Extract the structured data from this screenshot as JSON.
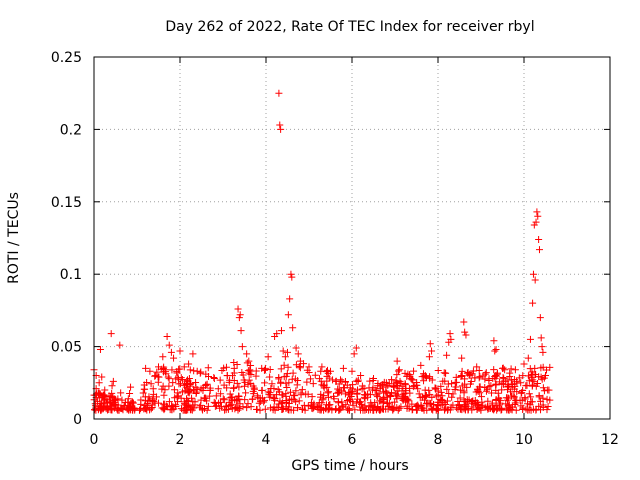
{
  "chart_data": {
    "type": "scatter",
    "title": "Day 262 of 2022, Rate Of TEC Index for receiver rbyl",
    "xlabel": "GPS time / hours",
    "ylabel": "ROTI / TECUs",
    "xlim": [
      0,
      12
    ],
    "ylim": [
      0,
      0.25
    ],
    "xticks": [
      0,
      2,
      4,
      6,
      8,
      10,
      12
    ],
    "yticks": [
      0,
      0.05,
      0.1,
      0.15,
      0.2,
      0.25
    ],
    "ytick_labels": [
      "0",
      "0.05",
      "0.1",
      "0.15",
      "0.2",
      "0.25"
    ],
    "grid": true,
    "marker": "+",
    "color": "#ff0000",
    "series": [
      {
        "name": "ROTI",
        "points": [
          [
            0.0,
            0.034
          ],
          [
            0.05,
            0.03
          ],
          [
            0.05,
            0.021
          ],
          [
            0.08,
            0.012
          ],
          [
            0.1,
            0.018
          ],
          [
            0.12,
            0.025
          ],
          [
            0.15,
            0.048
          ],
          [
            0.18,
            0.029
          ],
          [
            0.2,
            0.015
          ],
          [
            0.22,
            0.009
          ],
          [
            0.25,
            0.02
          ],
          [
            0.28,
            0.011
          ],
          [
            0.35,
            0.016
          ],
          [
            0.4,
            0.059
          ],
          [
            0.42,
            0.023
          ],
          [
            0.45,
            0.026
          ],
          [
            0.5,
            0.01
          ],
          [
            0.6,
            0.051
          ],
          [
            0.62,
            0.018
          ],
          [
            0.65,
            0.013
          ],
          [
            0.7,
            0.009
          ],
          [
            0.85,
            0.022
          ],
          [
            0.9,
            0.011
          ],
          [
            0.95,
            0.007
          ],
          [
            1.2,
            0.035
          ],
          [
            1.3,
            0.033
          ],
          [
            1.5,
            0.036
          ],
          [
            1.6,
            0.043
          ],
          [
            1.65,
            0.034
          ],
          [
            1.7,
            0.057
          ],
          [
            1.75,
            0.051
          ],
          [
            1.8,
            0.046
          ],
          [
            1.85,
            0.042
          ],
          [
            2.0,
            0.047
          ],
          [
            2.1,
            0.036
          ],
          [
            2.2,
            0.038
          ],
          [
            2.3,
            0.045
          ],
          [
            2.4,
            0.033
          ],
          [
            2.6,
            0.031
          ],
          [
            2.8,
            0.028
          ],
          [
            3.1,
            0.03
          ],
          [
            3.25,
            0.039
          ],
          [
            3.35,
            0.076
          ],
          [
            3.38,
            0.07
          ],
          [
            3.4,
            0.072
          ],
          [
            3.42,
            0.061
          ],
          [
            3.45,
            0.05
          ],
          [
            3.55,
            0.045
          ],
          [
            3.6,
            0.04
          ],
          [
            3.9,
            0.035
          ],
          [
            4.05,
            0.043
          ],
          [
            4.2,
            0.057
          ],
          [
            4.25,
            0.059
          ],
          [
            4.3,
            0.225
          ],
          [
            4.32,
            0.203
          ],
          [
            4.34,
            0.2
          ],
          [
            4.36,
            0.061
          ],
          [
            4.4,
            0.047
          ],
          [
            4.45,
            0.043
          ],
          [
            4.5,
            0.046
          ],
          [
            4.52,
            0.072
          ],
          [
            4.55,
            0.083
          ],
          [
            4.58,
            0.1
          ],
          [
            4.6,
            0.098
          ],
          [
            4.62,
            0.063
          ],
          [
            4.7,
            0.049
          ],
          [
            4.75,
            0.045
          ],
          [
            4.8,
            0.04
          ],
          [
            5.0,
            0.036
          ],
          [
            5.3,
            0.036
          ],
          [
            5.5,
            0.033
          ],
          [
            5.8,
            0.035
          ],
          [
            6.0,
            0.033
          ],
          [
            6.05,
            0.045
          ],
          [
            6.1,
            0.049
          ],
          [
            6.2,
            0.03
          ],
          [
            6.5,
            0.028
          ],
          [
            6.8,
            0.025
          ],
          [
            7.05,
            0.04
          ],
          [
            7.1,
            0.034
          ],
          [
            7.3,
            0.031
          ],
          [
            7.6,
            0.037
          ],
          [
            7.8,
            0.043
          ],
          [
            7.82,
            0.052
          ],
          [
            7.85,
            0.047
          ],
          [
            8.2,
            0.044
          ],
          [
            8.25,
            0.053
          ],
          [
            8.28,
            0.059
          ],
          [
            8.3,
            0.055
          ],
          [
            8.55,
            0.042
          ],
          [
            8.6,
            0.067
          ],
          [
            8.62,
            0.06
          ],
          [
            8.65,
            0.058
          ],
          [
            8.9,
            0.036
          ],
          [
            9.1,
            0.031
          ],
          [
            9.3,
            0.054
          ],
          [
            9.32,
            0.047
          ],
          [
            9.35,
            0.048
          ],
          [
            9.5,
            0.035
          ],
          [
            9.8,
            0.034
          ],
          [
            10.0,
            0.038
          ],
          [
            10.1,
            0.042
          ],
          [
            10.15,
            0.055
          ],
          [
            10.2,
            0.08
          ],
          [
            10.22,
            0.1
          ],
          [
            10.24,
            0.134
          ],
          [
            10.26,
            0.096
          ],
          [
            10.28,
            0.136
          ],
          [
            10.3,
            0.143
          ],
          [
            10.32,
            0.14
          ],
          [
            10.34,
            0.124
          ],
          [
            10.36,
            0.117
          ],
          [
            10.38,
            0.07
          ],
          [
            10.4,
            0.056
          ],
          [
            10.42,
            0.05
          ],
          [
            10.44,
            0.046
          ],
          [
            10.5,
            0.03
          ],
          [
            10.55,
            0.02
          ],
          [
            10.6,
            0.013
          ]
        ]
      }
    ]
  }
}
